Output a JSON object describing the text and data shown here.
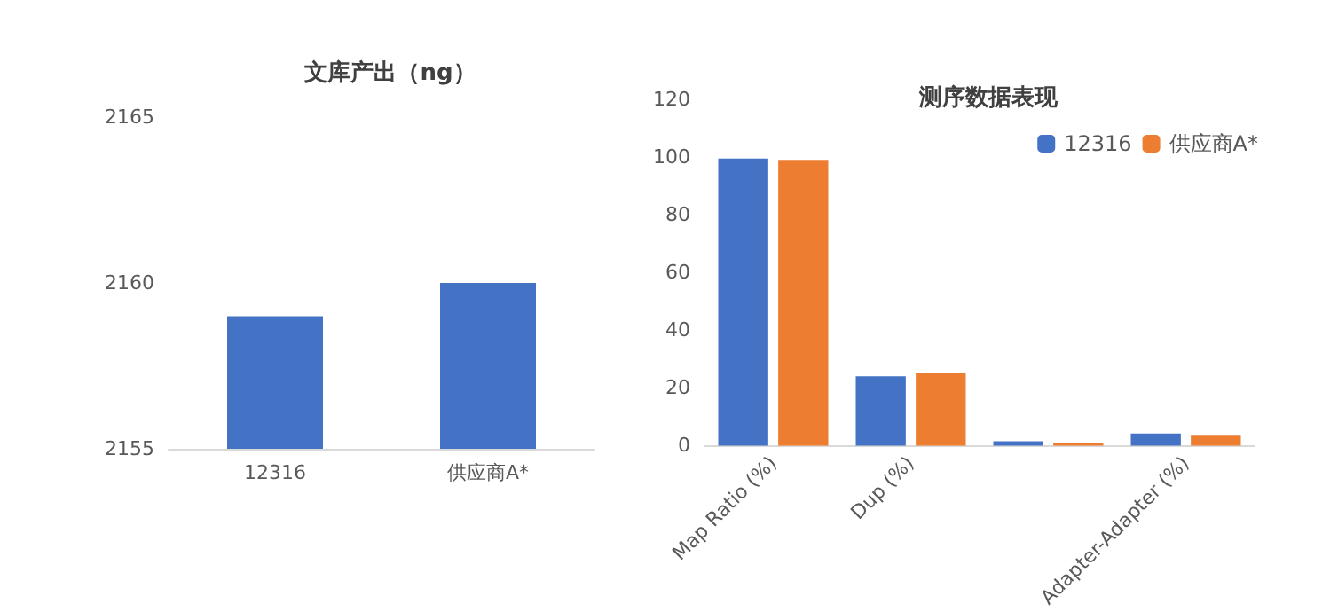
{
  "chart_data": [
    {
      "type": "bar",
      "title": "文库产出（ng）",
      "categories": [
        "12316",
        "供应商A*"
      ],
      "values": [
        2159,
        2160
      ],
      "color": "#4472c4",
      "ylim": [
        2155,
        2165
      ],
      "yticks": [
        2155,
        2160,
        2165
      ],
      "grid": false,
      "legend": false
    },
    {
      "type": "bar",
      "title": "测序数据表现",
      "categories": [
        "Map Ratio (%)",
        "Dup (%)",
        null,
        "Adapter-Adapter (%)"
      ],
      "series": [
        {
          "name": "12316",
          "color": "#4472c4",
          "values": [
            99.5,
            24,
            1.5,
            4.2
          ]
        },
        {
          "name": "供应商A*",
          "color": "#ed7d31",
          "values": [
            99,
            25.2,
            1,
            3.4
          ]
        }
      ],
      "ylim": [
        0,
        120
      ],
      "yticks": [
        0,
        20,
        40,
        60,
        80,
        100,
        120
      ],
      "grid": false,
      "legend": "top right"
    }
  ]
}
